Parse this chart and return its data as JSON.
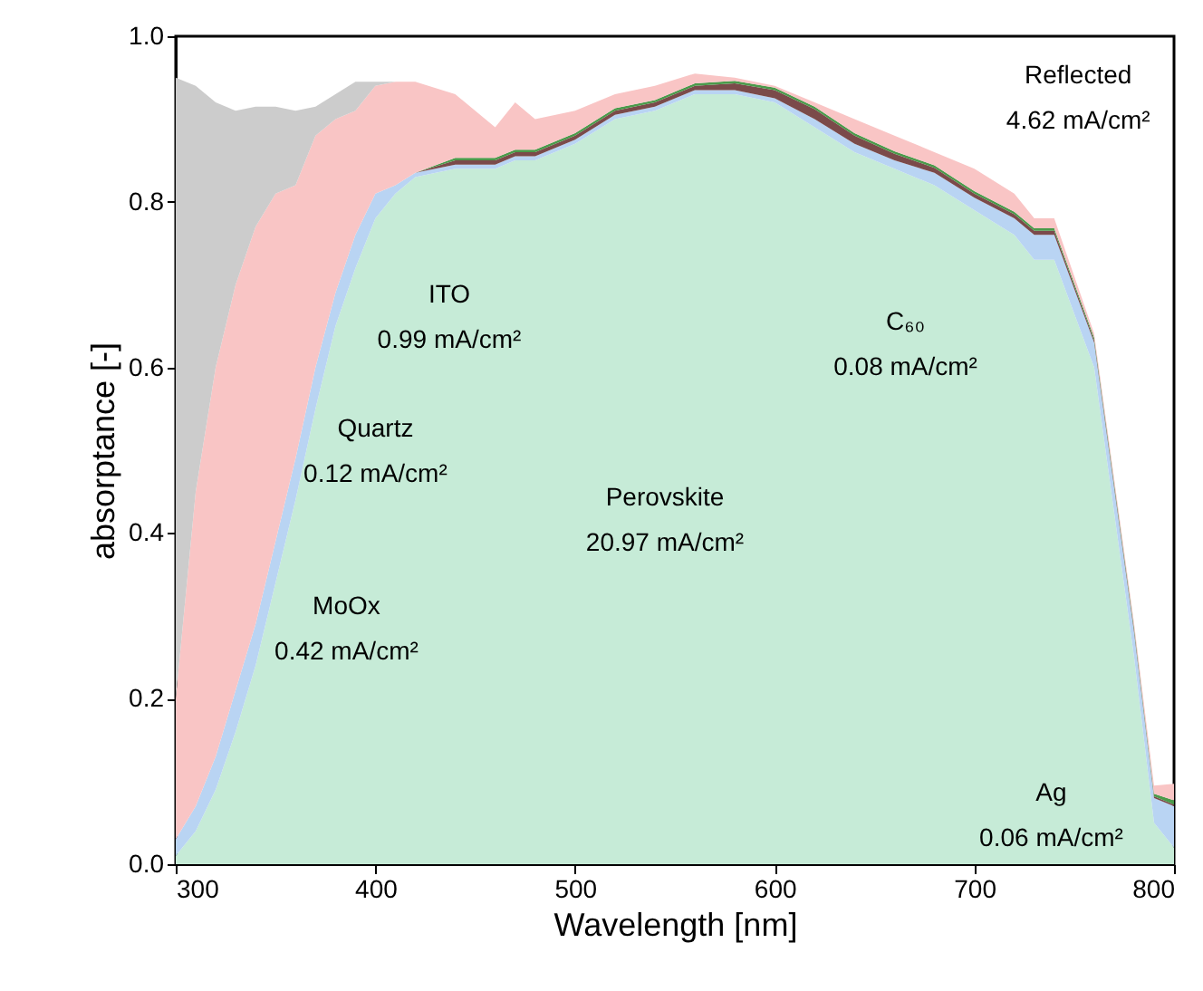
{
  "chart_data": {
    "type": "area",
    "stacked": true,
    "xlabel": "Wavelength [nm]",
    "ylabel": "absorptance [-]",
    "x": [
      300,
      310,
      320,
      330,
      340,
      350,
      360,
      370,
      380,
      390,
      400,
      410,
      420,
      440,
      460,
      470,
      480,
      500,
      520,
      540,
      560,
      580,
      600,
      620,
      640,
      660,
      680,
      700,
      720,
      730,
      740,
      760,
      780,
      790,
      800
    ],
    "series": [
      {
        "color": "#c6ebd7",
        "values": [
          0.01,
          0.04,
          0.09,
          0.16,
          0.24,
          0.34,
          0.44,
          0.55,
          0.65,
          0.72,
          0.78,
          0.81,
          0.83,
          0.84,
          0.84,
          0.85,
          0.85,
          0.87,
          0.9,
          0.91,
          0.93,
          0.93,
          0.92,
          0.89,
          0.86,
          0.84,
          0.82,
          0.79,
          0.76,
          0.73,
          0.73,
          0.6,
          0.25,
          0.05,
          0.02
        ]
      },
      {
        "color": "#b9d4f3",
        "values": [
          0.02,
          0.03,
          0.04,
          0.05,
          0.05,
          0.05,
          0.05,
          0.05,
          0.04,
          0.04,
          0.03,
          0.01,
          0.005,
          0.005,
          0.005,
          0.005,
          0.005,
          0.005,
          0.005,
          0.005,
          0.005,
          0.005,
          0.005,
          0.01,
          0.01,
          0.01,
          0.015,
          0.015,
          0.02,
          0.03,
          0.03,
          0.03,
          0.03,
          0.03,
          0.05
        ]
      },
      {
        "color": "#7b4a4a",
        "values": [
          0,
          0,
          0,
          0,
          0,
          0,
          0,
          0,
          0,
          0,
          0,
          0,
          0,
          0.005,
          0.005,
          0.005,
          0.005,
          0.005,
          0.005,
          0.005,
          0.005,
          0.008,
          0.01,
          0.012,
          0.01,
          0.008,
          0.006,
          0.005,
          0.005,
          0.005,
          0.005,
          0.003,
          0.003,
          0.002,
          0.002
        ]
      },
      {
        "color": "#4a9a4a",
        "values": [
          0,
          0,
          0,
          0,
          0,
          0,
          0,
          0,
          0,
          0,
          0,
          0,
          0,
          0.003,
          0.003,
          0.003,
          0.003,
          0.003,
          0.003,
          0.003,
          0.003,
          0.003,
          0.003,
          0.003,
          0.003,
          0.003,
          0.003,
          0.003,
          0.003,
          0.003,
          0.003,
          0.003,
          0.003,
          0.003,
          0.005
        ]
      },
      {
        "color": "#f9c5c5",
        "values": [
          0.17,
          0.38,
          0.47,
          0.49,
          0.48,
          0.42,
          0.33,
          0.28,
          0.21,
          0.15,
          0.13,
          0.125,
          0.11,
          0.077,
          0.037,
          0.057,
          0.037,
          0.027,
          0.017,
          0.017,
          0.012,
          0.004,
          0.002,
          0.005,
          0.017,
          0.019,
          0.016,
          0.027,
          0.022,
          0.012,
          0.012,
          0.005,
          0.005,
          0.01,
          0.02
        ]
      },
      {
        "color": "#cccccc",
        "values": [
          0.75,
          0.49,
          0.32,
          0.21,
          0.145,
          0.105,
          0.09,
          0.035,
          0.03,
          0.035,
          0.005,
          0,
          0,
          0,
          0,
          0,
          0,
          0,
          0,
          0,
          0,
          0,
          0,
          0,
          0,
          0,
          0,
          0,
          0,
          0,
          0,
          0,
          0,
          0,
          0
        ]
      }
    ],
    "xlim": [
      300,
      800
    ],
    "xticks": [
      300,
      400,
      500,
      600,
      700,
      800
    ],
    "ylim": [
      0,
      1.0
    ],
    "yticks": [
      {
        "value": 0,
        "label": "0.0"
      },
      0.2,
      0.4,
      0.6,
      0.8,
      {
        "value": 1.0,
        "label": "1.0"
      }
    ],
    "grid": false,
    "legend": false,
    "annotations": [
      "Reflected\n4.62 mA/cm²",
      "ITO\n0.99 mA/cm²",
      "Quartz\n0.12 mA/cm²",
      "MoOx\n0.42 mA/cm²",
      "Perovskite\n20.97 mA/cm²",
      "C₆₀\n0.08 mA/cm²",
      "Ag\n0.06 mA/cm²"
    ]
  }
}
